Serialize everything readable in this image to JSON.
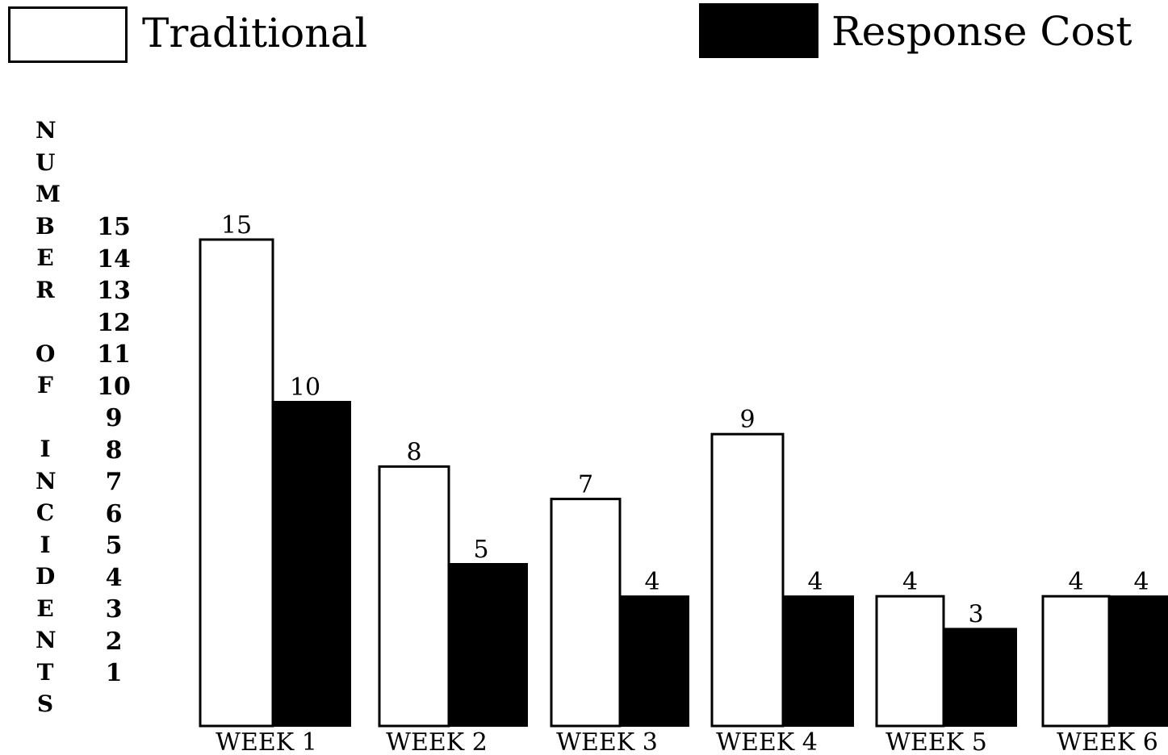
{
  "chart_data": {
    "type": "bar",
    "categories": [
      "WEEK 1",
      "WEEK 2",
      "WEEK 3",
      "WEEK 4",
      "WEEK 5",
      "WEEK 6"
    ],
    "series": [
      {
        "name": "Traditional",
        "values": [
          15,
          8,
          7,
          9,
          4,
          4
        ],
        "color": "#ffffff"
      },
      {
        "name": "Response Cost",
        "values": [
          10,
          5,
          4,
          4,
          3,
          4
        ],
        "color": "#000000"
      }
    ],
    "data_labels": [
      [
        "15",
        "8",
        "7",
        "9",
        "4",
        "4"
      ],
      [
        "10",
        "5",
        "4",
        "4",
        "3",
        "4"
      ]
    ],
    "ylabel": "NUMBER OF INCIDENTS",
    "yticks": [
      "15",
      "14",
      "13",
      "12",
      "11",
      "10",
      "9",
      "8",
      "7",
      "6",
      "5",
      "4",
      "3",
      "2",
      "1"
    ],
    "ylim": [
      0,
      15
    ],
    "grid": false,
    "legend_position": "top"
  }
}
